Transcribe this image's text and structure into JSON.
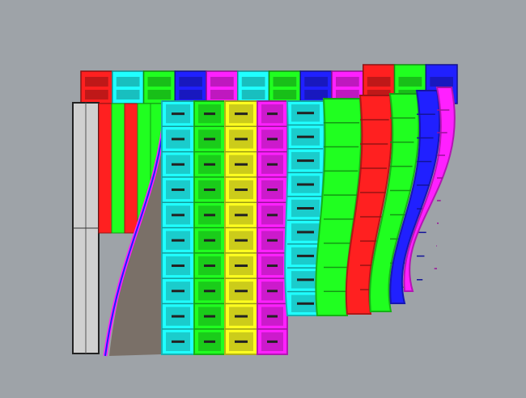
{
  "viewport": {
    "background": "#9ea3a8",
    "back_row_colors": [
      "#ff2020",
      "#20ffff",
      "#20ff20",
      "#2020ff",
      "#ff20ff",
      "#20ffff",
      "#20ff20",
      "#2020ff",
      "#ff20ff",
      "#ff2020",
      "#20ff20",
      "#2020ff"
    ],
    "front_column_colors": [
      "#20ffff",
      "#20ff20",
      "#ffff20",
      "#ff20ff",
      "#20ffff",
      "#20ff20",
      "#ff2020",
      "#20ff20",
      "#2020ff",
      "#ff20ff"
    ],
    "side_panel_color": "#d0d0d0",
    "curve_strip_color": "#7a7068"
  }
}
